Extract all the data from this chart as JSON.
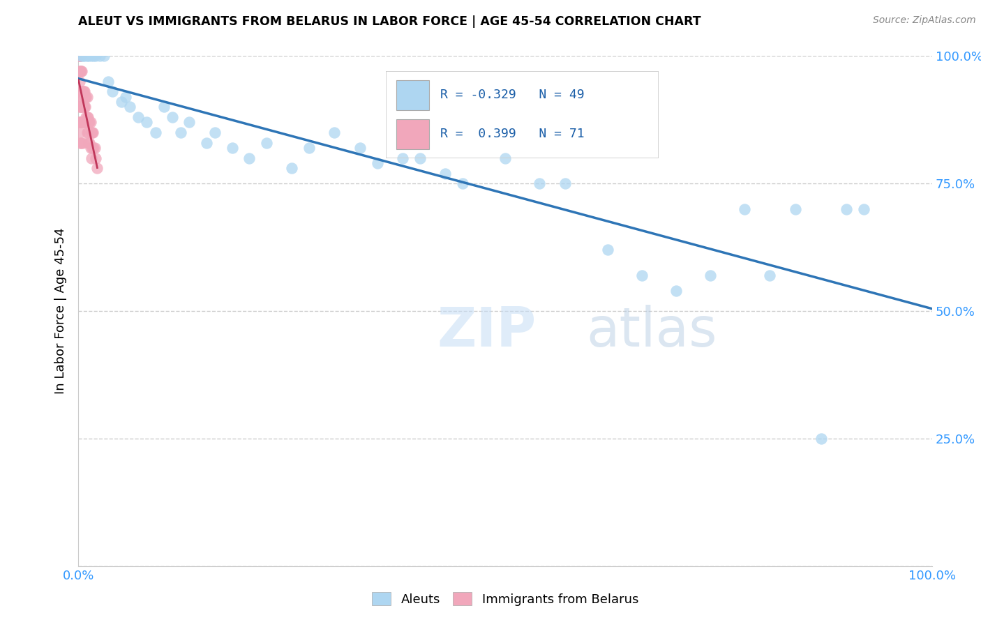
{
  "title": "ALEUT VS IMMIGRANTS FROM BELARUS IN LABOR FORCE | AGE 45-54 CORRELATION CHART",
  "source": "Source: ZipAtlas.com",
  "ylabel": "In Labor Force | Age 45-54",
  "xlim": [
    0,
    1.0
  ],
  "ylim": [
    0,
    1.0
  ],
  "ytick_positions": [
    0.0,
    0.25,
    0.5,
    0.75,
    1.0
  ],
  "yticklabels": [
    "",
    "25.0%",
    "50.0%",
    "75.0%",
    "100.0%"
  ],
  "legend_labels": [
    "Aleuts",
    "Immigrants from Belarus"
  ],
  "r_aleuts": -0.329,
  "n_aleuts": 49,
  "r_belarus": 0.399,
  "n_belarus": 71,
  "color_aleuts": "#aed6f1",
  "color_belarus": "#f1a7bb",
  "trendline_aleuts_color": "#2e75b6",
  "trendline_belarus_color": "#c0365a",
  "watermark_zip": "ZIP",
  "watermark_atlas": "atlas",
  "aleuts_x": [
    0.003,
    0.005,
    0.007,
    0.01,
    0.012,
    0.015,
    0.018,
    0.02,
    0.025,
    0.03,
    0.035,
    0.04,
    0.05,
    0.055,
    0.06,
    0.07,
    0.08,
    0.09,
    0.1,
    0.11,
    0.12,
    0.13,
    0.15,
    0.16,
    0.18,
    0.2,
    0.22,
    0.25,
    0.27,
    0.3,
    0.33,
    0.35,
    0.38,
    0.4,
    0.43,
    0.45,
    0.5,
    0.54,
    0.57,
    0.62,
    0.66,
    0.7,
    0.74,
    0.78,
    0.81,
    0.84,
    0.87,
    0.9,
    0.92
  ],
  "aleuts_y": [
    1.0,
    1.0,
    1.0,
    1.0,
    1.0,
    1.0,
    1.0,
    1.0,
    1.0,
    1.0,
    0.95,
    0.93,
    0.91,
    0.92,
    0.9,
    0.88,
    0.87,
    0.85,
    0.9,
    0.88,
    0.85,
    0.87,
    0.83,
    0.85,
    0.82,
    0.8,
    0.83,
    0.78,
    0.82,
    0.85,
    0.82,
    0.79,
    0.8,
    0.8,
    0.77,
    0.75,
    0.8,
    0.75,
    0.75,
    0.62,
    0.57,
    0.54,
    0.57,
    0.7,
    0.57,
    0.7,
    0.25,
    0.7,
    0.7
  ],
  "belarus_x": [
    0.0,
    0.0,
    0.0,
    0.0,
    0.0,
    0.0,
    0.0,
    0.0,
    0.0,
    0.0,
    0.001,
    0.001,
    0.001,
    0.001,
    0.001,
    0.001,
    0.001,
    0.001,
    0.001,
    0.001,
    0.002,
    0.002,
    0.002,
    0.002,
    0.002,
    0.002,
    0.002,
    0.003,
    0.003,
    0.003,
    0.003,
    0.003,
    0.004,
    0.004,
    0.004,
    0.004,
    0.005,
    0.005,
    0.005,
    0.005,
    0.006,
    0.006,
    0.006,
    0.007,
    0.007,
    0.007,
    0.008,
    0.008,
    0.008,
    0.009,
    0.009,
    0.01,
    0.01,
    0.01,
    0.011,
    0.011,
    0.012,
    0.012,
    0.013,
    0.013,
    0.014,
    0.014,
    0.015,
    0.015,
    0.016,
    0.016,
    0.017,
    0.018,
    0.019,
    0.02,
    0.022
  ],
  "belarus_y": [
    1.0,
    1.0,
    1.0,
    1.0,
    1.0,
    1.0,
    1.0,
    1.0,
    0.92,
    0.87,
    1.0,
    1.0,
    1.0,
    1.0,
    0.97,
    0.95,
    0.92,
    0.9,
    0.87,
    0.85,
    1.0,
    1.0,
    0.97,
    0.93,
    0.9,
    0.87,
    0.83,
    0.97,
    0.93,
    0.9,
    0.87,
    0.83,
    0.97,
    0.93,
    0.9,
    0.87,
    0.93,
    0.9,
    0.87,
    0.83,
    0.93,
    0.9,
    0.87,
    0.93,
    0.9,
    0.87,
    0.92,
    0.9,
    0.87,
    0.92,
    0.88,
    0.92,
    0.88,
    0.85,
    0.88,
    0.85,
    0.87,
    0.83,
    0.87,
    0.83,
    0.87,
    0.82,
    0.85,
    0.8,
    0.85,
    0.82,
    0.85,
    0.82,
    0.82,
    0.8,
    0.78
  ]
}
